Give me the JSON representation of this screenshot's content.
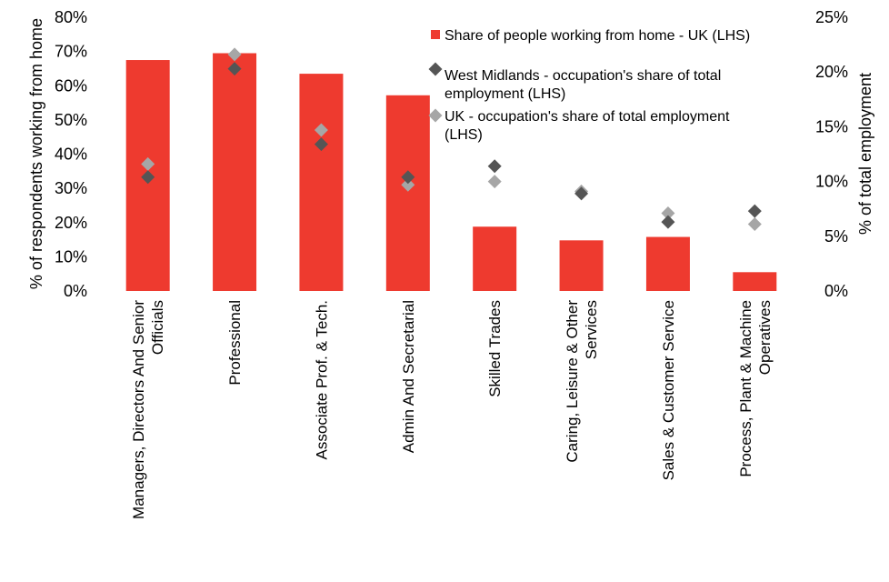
{
  "chart_data": {
    "type": "bar",
    "categories": [
      [
        "Managers, Directors And Senior",
        "Officials"
      ],
      [
        "Professional"
      ],
      [
        "Associate Prof. & Tech."
      ],
      [
        "Admin And Secretarial"
      ],
      [
        "Skilled Trades"
      ],
      [
        "Caring, Leisure & Other",
        "Services"
      ],
      [
        "Sales & Customer Service"
      ],
      [
        "Process, Plant & Machine",
        "Operatives"
      ]
    ],
    "series": [
      {
        "name": "Share of people working from home - UK (LHS)",
        "kind": "bar",
        "axis": "left",
        "color": "#ee3a2f",
        "values": [
          0.675,
          0.695,
          0.635,
          0.572,
          0.188,
          0.148,
          0.158,
          0.055
        ]
      },
      {
        "name": "West Midlands - occupation's share of total employment (LHS)",
        "kind": "marker",
        "axis": "right",
        "color": "#555555",
        "values": [
          0.104,
          0.203,
          0.134,
          0.104,
          0.114,
          0.089,
          0.063,
          0.073
        ]
      },
      {
        "name": "UK - occupation's share of total employment (LHS)",
        "kind": "marker",
        "axis": "right",
        "color": "#a6a6a6",
        "values": [
          0.116,
          0.216,
          0.147,
          0.097,
          0.1,
          0.091,
          0.071,
          0.061
        ]
      }
    ],
    "y_left": {
      "label": "% of respondents working from home",
      "ylim": [
        0,
        0.8
      ],
      "ticks": [
        "0%",
        "10%",
        "20%",
        "30%",
        "40%",
        "50%",
        "60%",
        "70%",
        "80%"
      ]
    },
    "y_right": {
      "label": "% of total employment",
      "ylim": [
        0,
        0.25
      ],
      "ticks": [
        "0%",
        "5%",
        "10%",
        "15%",
        "20%",
        "25%"
      ]
    },
    "legend": {
      "position": "top-right",
      "entries": [
        [
          "Share of people working from home - UK (LHS)"
        ],
        [
          "West Midlands - occupation's share of total",
          "employment (LHS)"
        ],
        [
          "UK - occupation's share of total employment",
          "(LHS)"
        ]
      ]
    },
    "grid": false
  }
}
